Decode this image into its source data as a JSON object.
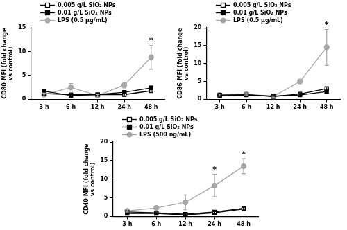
{
  "chart_data": [
    {
      "type": "line",
      "y_label": [
        "CD80 MFI (fold change",
        "vs control)"
      ],
      "categories": [
        "3 h",
        "6 h",
        "12 h",
        "24 h",
        "48 h"
      ],
      "series": [
        {
          "name": "0.005 g/L SiO₂ NPs",
          "color": "#000000",
          "marker": "square-open",
          "line_style": "solid",
          "values": [
            1.2,
            1.0,
            1.0,
            1.0,
            1.8
          ],
          "errors": [
            0.3,
            0.2,
            0.2,
            0.3,
            0.4
          ]
        },
        {
          "name": "0.01 g/L SiO₂ NPs",
          "color": "#000000",
          "marker": "square",
          "line_style": "solid",
          "values": [
            1.7,
            0.8,
            1.0,
            1.5,
            2.4
          ],
          "errors": [
            0.3,
            0.2,
            0.2,
            0.3,
            0.4
          ]
        },
        {
          "name": "LPS (0.5 μg/mL)",
          "color": "#a6a6a6",
          "marker": "circle",
          "line_style": "solid",
          "values": [
            1.0,
            2.5,
            0.8,
            3.0,
            8.8
          ],
          "errors": [
            0.3,
            0.8,
            0.3,
            0.6,
            2.5
          ],
          "marks": [
            null,
            null,
            null,
            null,
            "*"
          ]
        }
      ],
      "ylim": [
        0,
        15
      ],
      "yticks": [
        0,
        5,
        10,
        15
      ],
      "grid": false,
      "legend": "upper left"
    },
    {
      "type": "line",
      "y_label": [
        "CD86 MFI (fold change",
        "vs control)"
      ],
      "categories": [
        "3 h",
        "6 h",
        "12 h",
        "24 h",
        "48 h"
      ],
      "series": [
        {
          "name": "0.005 g/L SiO₂ NPs",
          "color": "#000000",
          "marker": "square-open",
          "line_style": "solid",
          "values": [
            1.2,
            1.3,
            0.8,
            1.5,
            3.0
          ],
          "errors": [
            0.2,
            0.2,
            0.2,
            0.3,
            0.5
          ]
        },
        {
          "name": "0.01 g/L SiO₂ NPs",
          "color": "#000000",
          "marker": "square",
          "line_style": "solid",
          "values": [
            1.0,
            1.2,
            0.9,
            1.2,
            2.2
          ],
          "errors": [
            0.2,
            0.2,
            0.2,
            0.3,
            0.4
          ]
        },
        {
          "name": "LPS (0.5 μg/mL)",
          "color": "#a6a6a6",
          "marker": "circle",
          "line_style": "solid",
          "values": [
            1.2,
            1.5,
            0.8,
            5.0,
            14.5
          ],
          "errors": [
            0.3,
            0.3,
            0.2,
            0.5,
            5.0
          ],
          "marks": [
            null,
            null,
            null,
            null,
            "*"
          ]
        }
      ],
      "ylim": [
        0,
        20
      ],
      "yticks": [
        0,
        5,
        10,
        15,
        20
      ],
      "grid": false,
      "legend": "upper left"
    },
    {
      "type": "line",
      "y_label": [
        "CD40 MFI (fold change",
        "vs control)"
      ],
      "categories": [
        "3 h",
        "6 h",
        "12 h",
        "24 h",
        "48 h"
      ],
      "series": [
        {
          "name": "0.005 g/L SiO₂ NPs",
          "color": "#000000",
          "marker": "square-open",
          "line_style": "solid",
          "values": [
            1.2,
            1.0,
            0.6,
            1.2,
            2.2
          ],
          "errors": [
            0.2,
            0.2,
            0.2,
            0.3,
            0.5
          ]
        },
        {
          "name": "0.01 g/L SiO₂ NPs",
          "color": "#000000",
          "marker": "square",
          "line_style": "solid",
          "values": [
            0.8,
            0.8,
            0.4,
            1.0,
            2.0
          ],
          "errors": [
            0.2,
            0.2,
            0.2,
            0.3,
            0.4
          ]
        },
        {
          "name": "LPS (500 ng/mL)",
          "color": "#a6a6a6",
          "marker": "circle",
          "line_style": "solid",
          "values": [
            1.5,
            2.3,
            3.8,
            8.3,
            13.5
          ],
          "errors": [
            0.3,
            0.3,
            2.0,
            3.0,
            2.0
          ],
          "marks": [
            null,
            null,
            null,
            "*",
            "*"
          ]
        }
      ],
      "ylim": [
        0,
        20
      ],
      "yticks": [
        0,
        5,
        10,
        15,
        20
      ],
      "grid": false,
      "legend": "upper left"
    }
  ]
}
